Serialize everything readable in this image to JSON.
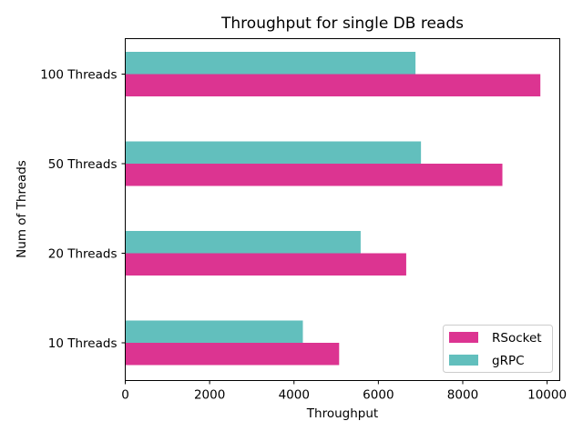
{
  "chart_data": {
    "type": "bar",
    "orientation": "horizontal",
    "title": "Throughput for single DB reads",
    "xlabel": "Throughput",
    "ylabel": "Num of Threads",
    "categories": [
      "10 Threads",
      "20 Threads",
      "50 Threads",
      "100 Threads"
    ],
    "series": [
      {
        "name": "RSocket",
        "color": "#dc3491",
        "values": [
          5070,
          6660,
          8940,
          9840
        ]
      },
      {
        "name": "gRPC",
        "color": "#62bfbd",
        "values": [
          4210,
          5580,
          7010,
          6880
        ]
      }
    ],
    "xlim": [
      0,
      10300
    ],
    "xticks": [
      0,
      2000,
      4000,
      6000,
      8000,
      10000
    ],
    "xtick_labels": [
      "0",
      "2000",
      "4000",
      "6000",
      "8000",
      "10000"
    ],
    "grid": false,
    "legend_position": "lower-right"
  }
}
